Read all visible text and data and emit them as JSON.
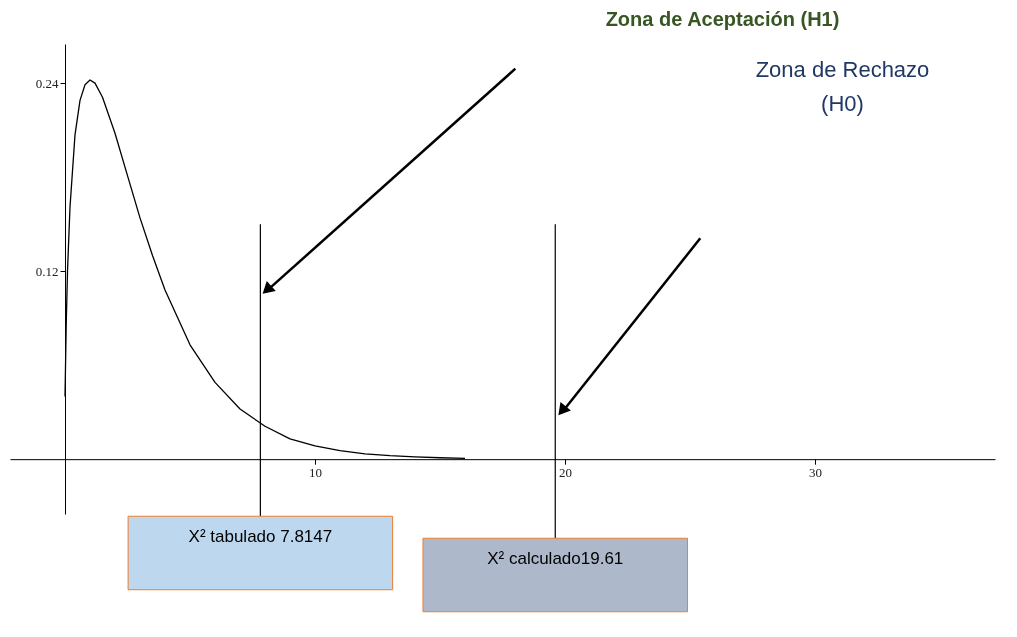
{
  "chart_data": {
    "type": "line",
    "title": "Zona de Aceptación (H1)",
    "x": [
      0,
      0.05,
      0.1,
      0.2,
      0.4,
      0.6,
      0.8,
      1.0,
      1.2,
      1.5,
      2,
      2.5,
      3,
      3.5,
      4,
      5,
      6,
      7,
      8,
      9,
      10,
      11,
      12,
      13,
      14,
      15,
      16
    ],
    "series": [
      {
        "color": "#000000",
        "values": [
          0.04,
          0.087,
          0.12,
          0.161,
          0.207,
          0.229,
          0.239,
          0.242,
          0.24,
          0.231,
          0.208,
          0.181,
          0.154,
          0.13,
          0.108,
          0.073,
          0.049,
          0.032,
          0.021,
          0.013,
          0.0085,
          0.0054,
          0.0034,
          0.0022,
          0.0014,
          0.0009,
          0.0005
        ]
      }
    ],
    "xlim": [
      -2.2,
      37.2
    ],
    "ylim": [
      -0.035,
      0.265
    ],
    "xticks": [
      10,
      20,
      30
    ],
    "yticks": [
      0.12,
      0.24
    ],
    "ref_lines": [
      {
        "axis": "x",
        "value": 7.8147,
        "label": "X² tabulado 7.8147",
        "color": "#000000"
      },
      {
        "axis": "x",
        "value": 19.61,
        "label": "X² calculado19.61",
        "color": "#000000"
      }
    ],
    "annotations": [
      "Zona de Rechazo\n(H0)"
    ],
    "grid": false,
    "marker": "none",
    "line_style": "solid"
  }
}
